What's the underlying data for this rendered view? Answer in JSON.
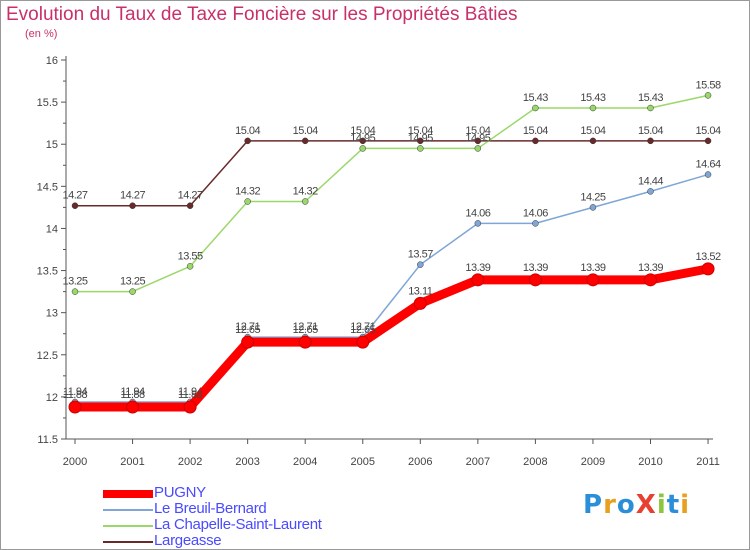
{
  "title": "Evolution du Taux de Taxe Foncière sur les Propriétés Bâties",
  "subtitle": "(en %)",
  "logo": "ProXiti",
  "chart_data": {
    "type": "line",
    "title": "Evolution du Taux de Taxe Foncière sur les Propriétés Bâties",
    "ylabel": "(en %)",
    "x": [
      "2000",
      "2001",
      "2002",
      "2003",
      "2004",
      "2005",
      "2006",
      "2007",
      "2008",
      "2009",
      "2010",
      "2011"
    ],
    "ylim": [
      11.5,
      16
    ],
    "yticks": [
      "11.5",
      "12",
      "12.5",
      "13",
      "13.5",
      "14",
      "14.5",
      "15",
      "15.5",
      "16"
    ],
    "grid": false,
    "legend": "bottom-left",
    "series": [
      {
        "name": "Largeasse",
        "color": "#6b2a2a",
        "values": [
          14.27,
          14.27,
          14.27,
          15.04,
          15.04,
          15.04,
          15.04,
          15.04,
          15.04,
          15.04,
          15.04,
          15.04
        ],
        "labels": [
          "14.27",
          "14.27",
          "14.27",
          "15.04",
          "15.04",
          "15.04",
          "15.04",
          "15.04",
          "15.04",
          "15.04",
          "15.04",
          "15.04"
        ]
      },
      {
        "name": "La Chapelle-Saint-Laurent",
        "color": "#9ad86a",
        "values": [
          13.25,
          13.25,
          13.55,
          14.32,
          14.32,
          14.95,
          14.95,
          14.95,
          15.43,
          15.43,
          15.43,
          15.58
        ],
        "labels": [
          "13.25",
          "13.25",
          "13.55",
          "14.32",
          "14.32",
          "14.95",
          "14.95",
          "14.95",
          "15.43",
          "15.43",
          "15.43",
          "15.58"
        ]
      },
      {
        "name": "Le Breuil-Bernard",
        "color": "#7fa6d6",
        "values": [
          11.94,
          11.94,
          11.94,
          12.71,
          12.71,
          12.71,
          13.57,
          14.06,
          14.06,
          14.25,
          14.44,
          14.64
        ],
        "labels": [
          "11.94",
          "11.94",
          "11.94",
          "12.71",
          "12.71",
          "12.71",
          "13.57",
          "14.06",
          "14.06",
          "14.25",
          "14.44",
          "14.64"
        ]
      },
      {
        "name": "PUGNY",
        "color": "#ff0000",
        "values": [
          11.88,
          11.88,
          11.88,
          12.65,
          12.65,
          12.65,
          13.11,
          13.39,
          13.39,
          13.39,
          13.39,
          13.52
        ],
        "labels": [
          "11.88",
          "11.88",
          "11.88",
          "12.65",
          "12.65",
          "12.65",
          "13.11",
          "13.39",
          "13.39",
          "13.39",
          "13.39",
          "13.52"
        ]
      }
    ],
    "legend_order": [
      "PUGNY",
      "Le Breuil-Bernard",
      "La Chapelle-Saint-Laurent",
      "Largeasse"
    ]
  }
}
